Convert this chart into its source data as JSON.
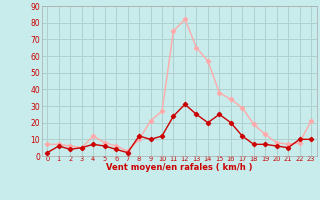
{
  "title": "",
  "xlabel": "Vent moyen/en rafales ( km/h )",
  "ylabel": "",
  "bg_color": "#c8ecec",
  "grid_color": "#b0d0d0",
  "x_labels": [
    "0",
    "1",
    "2",
    "3",
    "4",
    "5",
    "6",
    "7",
    "8",
    "9",
    "10",
    "11",
    "12",
    "13",
    "14",
    "15",
    "16",
    "17",
    "18",
    "19",
    "20",
    "21",
    "22",
    "23"
  ],
  "yticks": [
    0,
    10,
    20,
    30,
    40,
    50,
    60,
    70,
    80,
    90
  ],
  "mean_wind": [
    2,
    6,
    4,
    5,
    7,
    6,
    4,
    2,
    12,
    10,
    12,
    24,
    31,
    25,
    20,
    25,
    20,
    12,
    7,
    7,
    6,
    5,
    10,
    10
  ],
  "gust_wind": [
    7,
    7,
    6,
    5,
    12,
    8,
    6,
    3,
    10,
    21,
    27,
    75,
    82,
    65,
    57,
    38,
    34,
    29,
    19,
    13,
    8,
    7,
    8,
    21
  ],
  "mean_color": "#cc0000",
  "gust_color": "#ffaaaa",
  "marker_size": 2.2,
  "line_width": 1.0
}
